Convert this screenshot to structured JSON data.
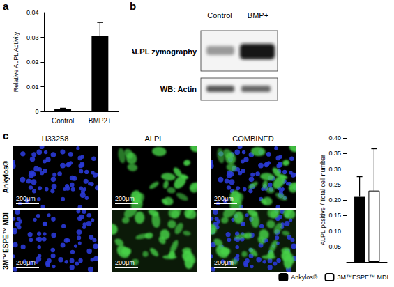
{
  "figure": {
    "panel_labels": [
      "a",
      "b",
      "c"
    ]
  },
  "chart_data": [
    {
      "type": "bar",
      "ylabel": "Relative ALPL Activity",
      "categories": [
        "Control",
        "BMP2+"
      ],
      "values": [
        0.001,
        0.0305
      ],
      "errors": [
        0.0003,
        0.0055
      ],
      "color": "#000000",
      "ylim": [
        0,
        0.04
      ],
      "yticks": [
        0,
        0.01,
        0.02,
        0.03,
        0.04
      ],
      "grid": false
    },
    {
      "type": "bar",
      "ylabel": "ALPL positive / Total cell number",
      "categories": [
        null
      ],
      "series": [
        {
          "name": "Ankylos®",
          "color": "#000000",
          "values": [
            0.21
          ],
          "errors": [
            0.065
          ]
        },
        {
          "name": "3M™ESPE™ MDI",
          "color": "#ffffff",
          "values": [
            0.23
          ],
          "errors": [
            0.135
          ]
        }
      ],
      "ylim": [
        0,
        0.4
      ],
      "yticks": [
        0.05,
        {
          "value": 0.1,
          "label": "0.10"
        },
        0.15,
        {
          "value": 0.2,
          "label": "0.20"
        },
        0.25,
        {
          "value": 0.3,
          "label": "0.30"
        },
        0.35,
        {
          "value": 0.4,
          "label": "0.40"
        }
      ],
      "legend": "bottom-right",
      "tick_labels": "y",
      "grid": false
    }
  ],
  "blot": {
    "columns": [
      "Control",
      "BMP+"
    ],
    "rows": [
      "ALPL zymography",
      "WB: Actin"
    ]
  },
  "images": {
    "columns": [
      "H33258",
      "ALPL",
      "COMBINED"
    ],
    "rows": [
      "Ankylos®",
      "3M™ESPE™ MDI"
    ],
    "scale_bar": "200μm"
  }
}
